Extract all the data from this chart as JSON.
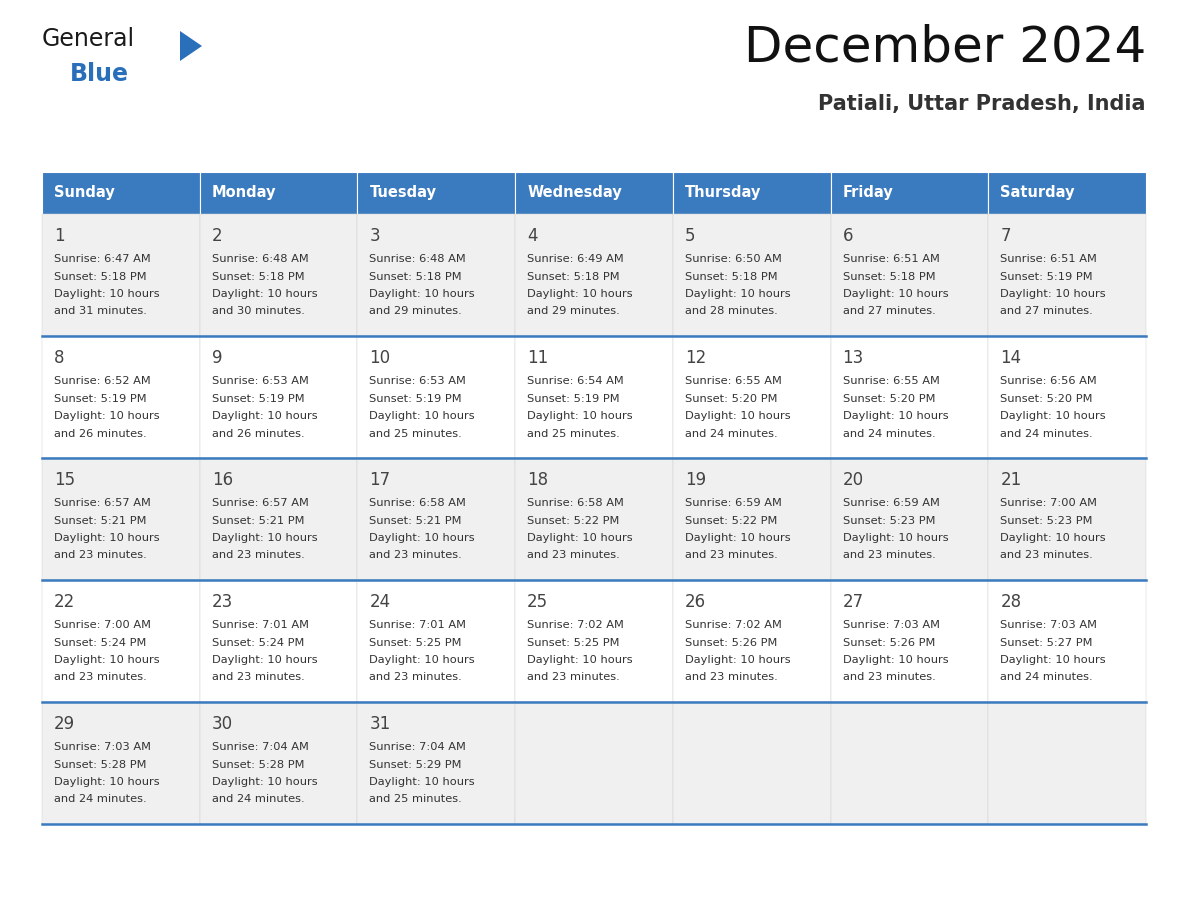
{
  "title": "December 2024",
  "subtitle": "Patiali, Uttar Pradesh, India",
  "header_color": "#3a7abf",
  "header_text_color": "#ffffff",
  "day_names": [
    "Sunday",
    "Monday",
    "Tuesday",
    "Wednesday",
    "Thursday",
    "Friday",
    "Saturday"
  ],
  "weeks": [
    [
      {
        "day": 1,
        "sunrise": "6:47 AM",
        "sunset": "5:18 PM",
        "daylight_hours": 10,
        "daylight_minutes": 31
      },
      {
        "day": 2,
        "sunrise": "6:48 AM",
        "sunset": "5:18 PM",
        "daylight_hours": 10,
        "daylight_minutes": 30
      },
      {
        "day": 3,
        "sunrise": "6:48 AM",
        "sunset": "5:18 PM",
        "daylight_hours": 10,
        "daylight_minutes": 29
      },
      {
        "day": 4,
        "sunrise": "6:49 AM",
        "sunset": "5:18 PM",
        "daylight_hours": 10,
        "daylight_minutes": 29
      },
      {
        "day": 5,
        "sunrise": "6:50 AM",
        "sunset": "5:18 PM",
        "daylight_hours": 10,
        "daylight_minutes": 28
      },
      {
        "day": 6,
        "sunrise": "6:51 AM",
        "sunset": "5:18 PM",
        "daylight_hours": 10,
        "daylight_minutes": 27
      },
      {
        "day": 7,
        "sunrise": "6:51 AM",
        "sunset": "5:19 PM",
        "daylight_hours": 10,
        "daylight_minutes": 27
      }
    ],
    [
      {
        "day": 8,
        "sunrise": "6:52 AM",
        "sunset": "5:19 PM",
        "daylight_hours": 10,
        "daylight_minutes": 26
      },
      {
        "day": 9,
        "sunrise": "6:53 AM",
        "sunset": "5:19 PM",
        "daylight_hours": 10,
        "daylight_minutes": 26
      },
      {
        "day": 10,
        "sunrise": "6:53 AM",
        "sunset": "5:19 PM",
        "daylight_hours": 10,
        "daylight_minutes": 25
      },
      {
        "day": 11,
        "sunrise": "6:54 AM",
        "sunset": "5:19 PM",
        "daylight_hours": 10,
        "daylight_minutes": 25
      },
      {
        "day": 12,
        "sunrise": "6:55 AM",
        "sunset": "5:20 PM",
        "daylight_hours": 10,
        "daylight_minutes": 24
      },
      {
        "day": 13,
        "sunrise": "6:55 AM",
        "sunset": "5:20 PM",
        "daylight_hours": 10,
        "daylight_minutes": 24
      },
      {
        "day": 14,
        "sunrise": "6:56 AM",
        "sunset": "5:20 PM",
        "daylight_hours": 10,
        "daylight_minutes": 24
      }
    ],
    [
      {
        "day": 15,
        "sunrise": "6:57 AM",
        "sunset": "5:21 PM",
        "daylight_hours": 10,
        "daylight_minutes": 23
      },
      {
        "day": 16,
        "sunrise": "6:57 AM",
        "sunset": "5:21 PM",
        "daylight_hours": 10,
        "daylight_minutes": 23
      },
      {
        "day": 17,
        "sunrise": "6:58 AM",
        "sunset": "5:21 PM",
        "daylight_hours": 10,
        "daylight_minutes": 23
      },
      {
        "day": 18,
        "sunrise": "6:58 AM",
        "sunset": "5:22 PM",
        "daylight_hours": 10,
        "daylight_minutes": 23
      },
      {
        "day": 19,
        "sunrise": "6:59 AM",
        "sunset": "5:22 PM",
        "daylight_hours": 10,
        "daylight_minutes": 23
      },
      {
        "day": 20,
        "sunrise": "6:59 AM",
        "sunset": "5:23 PM",
        "daylight_hours": 10,
        "daylight_minutes": 23
      },
      {
        "day": 21,
        "sunrise": "7:00 AM",
        "sunset": "5:23 PM",
        "daylight_hours": 10,
        "daylight_minutes": 23
      }
    ],
    [
      {
        "day": 22,
        "sunrise": "7:00 AM",
        "sunset": "5:24 PM",
        "daylight_hours": 10,
        "daylight_minutes": 23
      },
      {
        "day": 23,
        "sunrise": "7:01 AM",
        "sunset": "5:24 PM",
        "daylight_hours": 10,
        "daylight_minutes": 23
      },
      {
        "day": 24,
        "sunrise": "7:01 AM",
        "sunset": "5:25 PM",
        "daylight_hours": 10,
        "daylight_minutes": 23
      },
      {
        "day": 25,
        "sunrise": "7:02 AM",
        "sunset": "5:25 PM",
        "daylight_hours": 10,
        "daylight_minutes": 23
      },
      {
        "day": 26,
        "sunrise": "7:02 AM",
        "sunset": "5:26 PM",
        "daylight_hours": 10,
        "daylight_minutes": 23
      },
      {
        "day": 27,
        "sunrise": "7:03 AM",
        "sunset": "5:26 PM",
        "daylight_hours": 10,
        "daylight_minutes": 23
      },
      {
        "day": 28,
        "sunrise": "7:03 AM",
        "sunset": "5:27 PM",
        "daylight_hours": 10,
        "daylight_minutes": 24
      }
    ],
    [
      {
        "day": 29,
        "sunrise": "7:03 AM",
        "sunset": "5:28 PM",
        "daylight_hours": 10,
        "daylight_minutes": 24
      },
      {
        "day": 30,
        "sunrise": "7:04 AM",
        "sunset": "5:28 PM",
        "daylight_hours": 10,
        "daylight_minutes": 24
      },
      {
        "day": 31,
        "sunrise": "7:04 AM",
        "sunset": "5:29 PM",
        "daylight_hours": 10,
        "daylight_minutes": 25
      },
      null,
      null,
      null,
      null
    ]
  ],
  "logo_color_general": "#1a1a1a",
  "logo_color_blue": "#2a6fba",
  "logo_triangle_color": "#2a6fba",
  "title_color": "#111111",
  "subtitle_color": "#333333",
  "cell_text_color": "#333333",
  "day_num_color": "#444444",
  "separator_color": "#3a7abf",
  "cell_bg_even": "#f0f0f0",
  "cell_bg_odd": "#ffffff",
  "cell_border_color": "#cccccc"
}
